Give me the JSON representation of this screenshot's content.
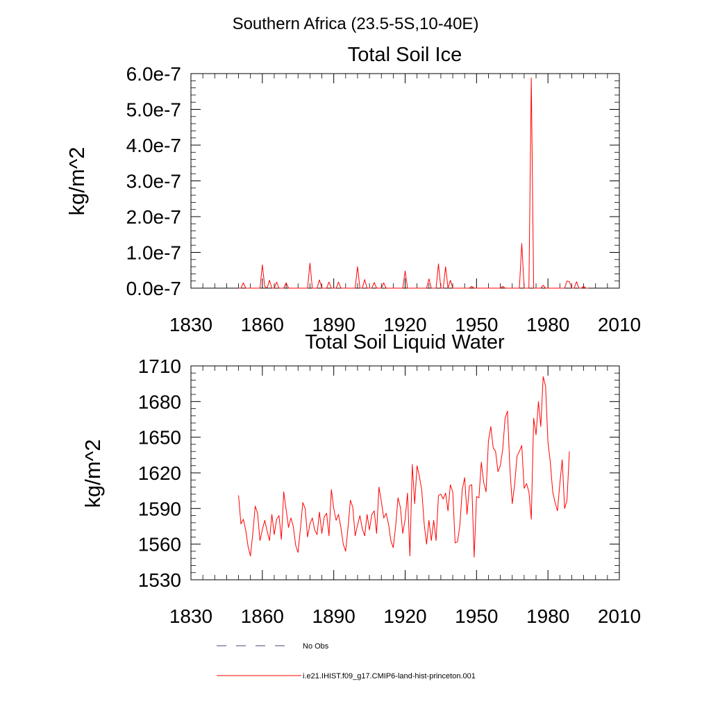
{
  "figure": {
    "suptitle": "Southern Africa (23.5-5S,10-40E)"
  },
  "colors": {
    "series": "#ff0000",
    "no_obs": "#3a4a6e",
    "axes": "#000000"
  },
  "legend": {
    "placement": "bottom",
    "entries": [
      {
        "label": "No Obs",
        "style": "dashed",
        "color": "#3a4a6e"
      },
      {
        "label": "i.e21.IHIST.f09_g17.CMIP6-land-hist-princeton.001",
        "style": "solid",
        "color": "#ff0000"
      }
    ]
  },
  "chart_data": [
    {
      "type": "line",
      "title": "Total Soil Ice",
      "ylabel": "kg/m^2",
      "xlim": [
        1830,
        2010
      ],
      "ylim": [
        0,
        6e-07
      ],
      "xticks": [
        1830,
        1860,
        1890,
        1920,
        1950,
        1980,
        2010
      ],
      "xtick_labels": [
        "1830",
        "1860",
        "1890",
        "1920",
        "1950",
        "1980",
        "2010"
      ],
      "yticks": [
        0,
        1e-07,
        2e-07,
        3e-07,
        4e-07,
        5e-07,
        6e-07
      ],
      "ytick_labels": [
        "0.0e-7",
        "1.0e-7",
        "2.0e-7",
        "3.0e-7",
        "4.0e-7",
        "5.0e-7",
        "6.0e-7"
      ],
      "grid": false,
      "series": [
        {
          "name": "i.e21.IHIST.f09_g17.CMIP6-land-hist-princeton.001",
          "x_start": 1850,
          "x_step": 1,
          "values": [
            0,
            0,
            1.5e-08,
            0,
            0,
            0,
            0,
            0,
            0,
            0,
            6.5e-08,
            5e-09,
            0,
            2.2e-08,
            0,
            0,
            1.7e-08,
            0,
            0,
            0,
            1.5e-08,
            0,
            0,
            0,
            0,
            0,
            0,
            0,
            0,
            0,
            7e-08,
            0,
            0,
            0,
            2.3e-08,
            0,
            0,
            0,
            1.7e-08,
            0,
            0,
            0,
            1.7e-08,
            0,
            0,
            0,
            0,
            0,
            0,
            0,
            6e-08,
            0,
            0,
            2.4e-08,
            0,
            0,
            0,
            1.6e-08,
            0,
            0,
            0,
            1.5e-08,
            0,
            0,
            0,
            0,
            0,
            0,
            0,
            0,
            4.8e-08,
            0,
            0,
            0,
            0,
            0,
            0,
            0,
            0,
            0,
            2.6e-08,
            0,
            0,
            0,
            6.8e-08,
            0,
            0,
            6e-08,
            0,
            2.2e-08,
            0,
            0,
            0,
            0,
            0,
            0,
            0,
            0,
            5e-09,
            0,
            0,
            0,
            0,
            0,
            0,
            0,
            0,
            0,
            0,
            0,
            0,
            5e-09,
            0,
            0,
            0,
            0,
            0,
            0,
            0,
            1.25e-07,
            0,
            0,
            0,
            5.88e-07,
            0,
            0,
            0,
            0,
            8e-09,
            0,
            0,
            0,
            0,
            0,
            0,
            0,
            0,
            0,
            2e-08,
            1.8e-08,
            0,
            0,
            1.8e-08,
            0,
            0,
            5e-09,
            0,
            0
          ]
        }
      ]
    },
    {
      "type": "line",
      "title": "Total Soil Liquid Water",
      "ylabel": "kg/m^2",
      "xlim": [
        1830,
        2010
      ],
      "ylim": [
        1530,
        1710
      ],
      "xticks": [
        1830,
        1860,
        1890,
        1920,
        1950,
        1980,
        2010
      ],
      "xtick_labels": [
        "1830",
        "1860",
        "1890",
        "1920",
        "1950",
        "1980",
        "2010"
      ],
      "yticks": [
        1530,
        1560,
        1590,
        1620,
        1650,
        1680,
        1710
      ],
      "ytick_labels": [
        "1530",
        "1560",
        "1590",
        "1620",
        "1650",
        "1680",
        "1710"
      ],
      "grid": false,
      "series": [
        {
          "name": "i.e21.IHIST.f09_g17.CMIP6-land-hist-princeton.001",
          "x_start": 1850,
          "x_step": 1,
          "values": [
            1601,
            1577,
            1581,
            1572,
            1558,
            1550,
            1569,
            1592,
            1586,
            1563,
            1572,
            1580,
            1571,
            1563,
            1585,
            1568,
            1581,
            1584,
            1564,
            1604,
            1589,
            1574,
            1582,
            1575,
            1559,
            1553,
            1573,
            1595,
            1590,
            1566,
            1577,
            1582,
            1572,
            1568,
            1587,
            1569,
            1583,
            1586,
            1567,
            1606,
            1590,
            1580,
            1585,
            1574,
            1560,
            1554,
            1574,
            1597,
            1591,
            1567,
            1576,
            1584,
            1573,
            1567,
            1585,
            1572,
            1585,
            1588,
            1569,
            1608,
            1596,
            1582,
            1586,
            1577,
            1563,
            1557,
            1575,
            1599,
            1591,
            1569,
            1581,
            1603,
            1550,
            1627,
            1594,
            1626,
            1617,
            1605,
            1577,
            1560,
            1580,
            1563,
            1580,
            1563,
            1601,
            1602,
            1598,
            1603,
            1588,
            1610,
            1604,
            1561,
            1562,
            1576,
            1606,
            1616,
            1585,
            1609,
            1610,
            1549,
            1600,
            1599,
            1629,
            1612,
            1604,
            1647,
            1659,
            1641,
            1638,
            1621,
            1626,
            1640,
            1666,
            1672,
            1624,
            1594,
            1610,
            1634,
            1638,
            1643,
            1607,
            1611,
            1604,
            1581,
            1666,
            1652,
            1680,
            1659,
            1701,
            1693,
            1646,
            1629,
            1604,
            1595,
            1588,
            1611,
            1631,
            1590,
            1597,
            1638
          ]
        }
      ]
    }
  ]
}
